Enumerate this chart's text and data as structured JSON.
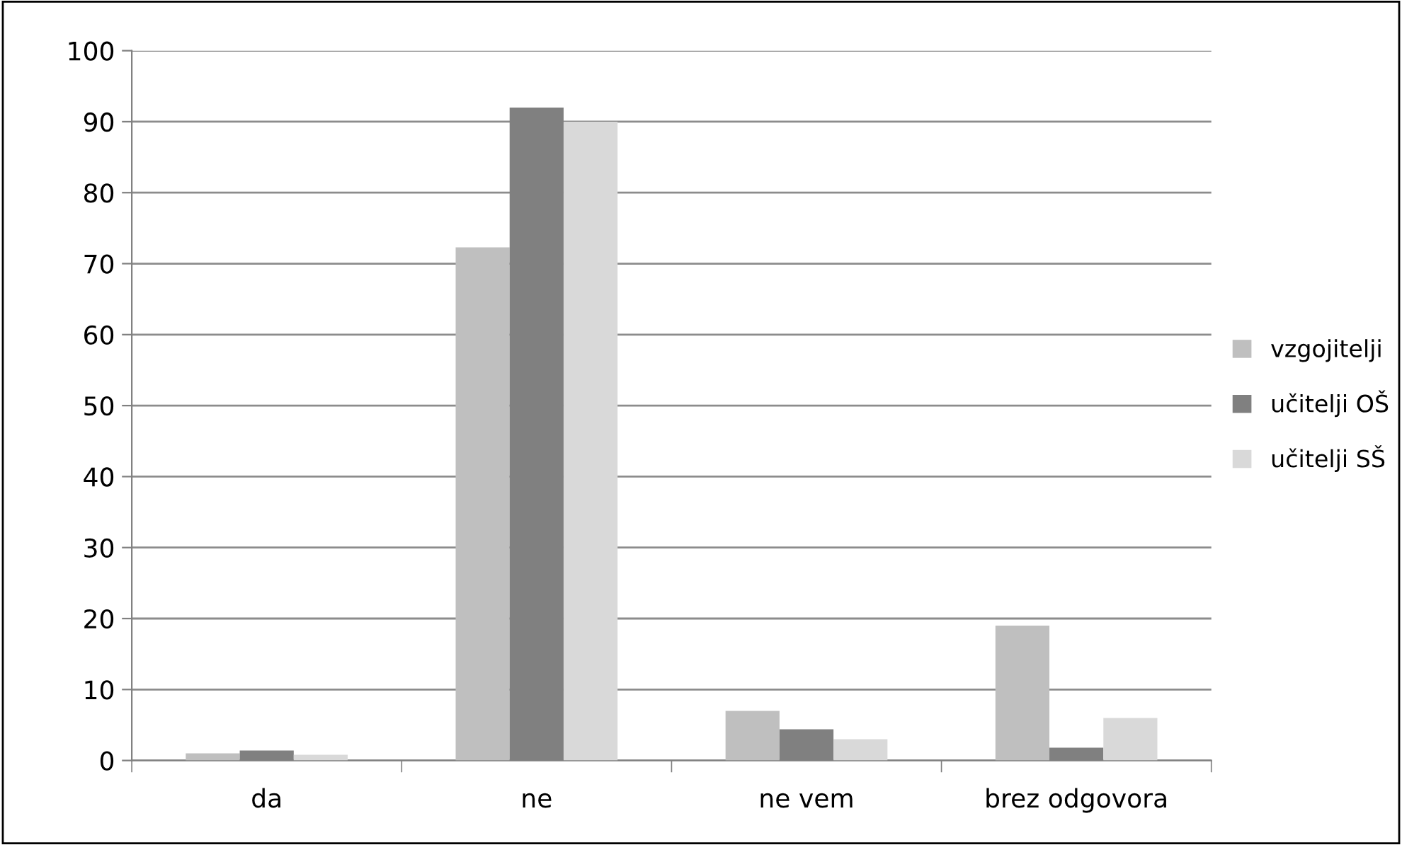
{
  "chart_data": {
    "type": "bar",
    "categories": [
      "da",
      "ne",
      "ne vem",
      "brez odgovora"
    ],
    "series": [
      {
        "name": "vzgojitelji",
        "color": "#bfbfbf",
        "values": [
          1,
          72.3,
          7,
          19
        ]
      },
      {
        "name": "učitelji OŠ",
        "color": "#808080",
        "values": [
          1.4,
          92,
          4.4,
          1.8
        ]
      },
      {
        "name": "učitelji SŠ",
        "color": "#d9d9d9",
        "values": [
          0.8,
          90,
          3,
          6
        ]
      }
    ],
    "ylim": [
      0,
      100
    ],
    "yticks": [
      0,
      10,
      20,
      30,
      40,
      50,
      60,
      70,
      80,
      90,
      100
    ],
    "grid": "y",
    "legend": "right"
  }
}
